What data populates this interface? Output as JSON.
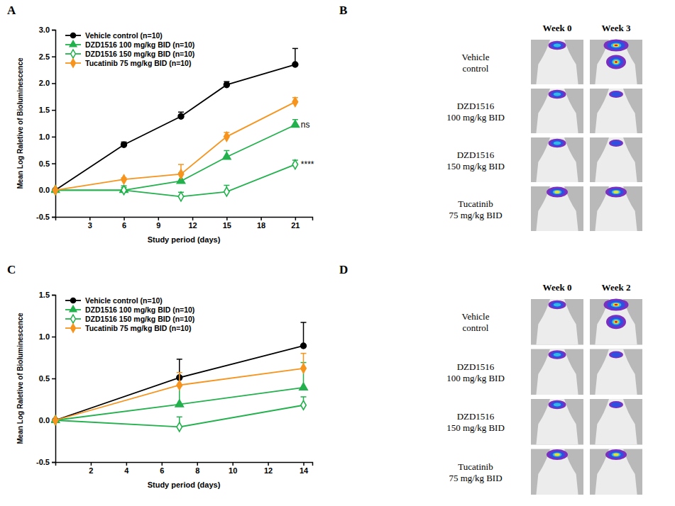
{
  "panel_letters": [
    "A",
    "B",
    "C",
    "D"
  ],
  "chart_data": [
    {
      "type": "line",
      "x": [
        0,
        6,
        11,
        15,
        21
      ],
      "xlim": [
        0,
        22.5
      ],
      "xticks": [
        3,
        6,
        9,
        12,
        15,
        18,
        21
      ],
      "ylim": [
        -0.5,
        3.0
      ],
      "yticks": [
        -0.5,
        {
          "value": 0,
          "label": "0.0"
        },
        0.5,
        {
          "value": 1,
          "label": "1.0"
        },
        1.5,
        {
          "value": 2,
          "label": "2.0"
        },
        2.5,
        {
          "value": 3,
          "label": "3.0"
        }
      ],
      "x_label": "Study period (days)",
      "y_label": "Mean Log Raletive of Bioluminescence",
      "legend": "top-left",
      "series": [
        {
          "name": "Vehicle control (n=10)",
          "color": "#000000",
          "marker": "circle",
          "values": [
            0,
            0.85,
            1.38,
            1.97,
            2.35
          ],
          "errors": [
            0,
            0.05,
            0.08,
            0.06,
            0.3
          ]
        },
        {
          "name": "DZD1516 100 mg/kg BID (n=10)",
          "color": "#22b14c",
          "marker": "triangle",
          "values": [
            0,
            0.0,
            0.17,
            0.62,
            1.22
          ],
          "errors": [
            0,
            0.05,
            0.15,
            0.12,
            0.1
          ],
          "annotation": "ns"
        },
        {
          "name": "DZD1516 150 mg/kg BID (n=10)",
          "color": "#22b14c",
          "marker": "diamond-open",
          "values": [
            0,
            0.0,
            -0.12,
            -0.03,
            0.48
          ],
          "errors": [
            0,
            0.08,
            0.08,
            0.12,
            0.08
          ],
          "annotation": "****"
        },
        {
          "name": "Tucatinib 75 mg/kg BID (n=10)",
          "color": "#f7941d",
          "marker": "diamond",
          "values": [
            0,
            0.2,
            0.3,
            1.0,
            1.65
          ],
          "errors": [
            0,
            0.03,
            0.18,
            0.08,
            0.08
          ]
        }
      ]
    },
    {
      "type": "line",
      "x": [
        0,
        7,
        14
      ],
      "xlim": [
        0,
        14.5
      ],
      "xticks": [
        2,
        4,
        6,
        8,
        10,
        12,
        14
      ],
      "ylim": [
        -0.5,
        1.5
      ],
      "yticks": [
        -0.5,
        {
          "value": 0,
          "label": "0.0"
        },
        0.5,
        {
          "value": 1,
          "label": "1.0"
        },
        1.5
      ],
      "x_label": "Study period (days)",
      "y_label": "Mean Log Raletive of Bioluminescence",
      "legend": "top-left",
      "series": [
        {
          "name": "Vehicle control (n=10)",
          "color": "#000000",
          "marker": "circle",
          "values": [
            0,
            0.51,
            0.89
          ],
          "errors": [
            0,
            0.22,
            0.28
          ]
        },
        {
          "name": "DZD1516 100 mg/kg BID (n=10)",
          "color": "#22b14c",
          "marker": "triangle",
          "values": [
            0,
            0.19,
            0.39
          ],
          "errors": [
            0,
            0.22,
            0.3
          ]
        },
        {
          "name": "DZD1516 150 mg/kg BID (n=10)",
          "color": "#22b14c",
          "marker": "diamond-open",
          "values": [
            0,
            -0.08,
            0.18
          ],
          "errors": [
            0,
            0.12,
            0.1
          ]
        },
        {
          "name": "Tucatinib 75 mg/kg BID (n=10)",
          "color": "#f7941d",
          "marker": "diamond",
          "values": [
            0,
            0.42,
            0.62
          ],
          "errors": [
            0,
            0.15,
            0.18
          ]
        }
      ]
    }
  ],
  "image_panels": [
    {
      "columns": [
        "Week 0",
        "Week 3"
      ],
      "rows": [
        "Vehicle control",
        "DZD1516 100 mg/kg BID",
        "DZD1516 150 mg/kg BID",
        "Tucatinib 75 mg/kg BID"
      ]
    },
    {
      "columns": [
        "Week 0",
        "Week 2"
      ],
      "rows": [
        "Vehicle control",
        "DZD1516 100 mg/kg BID",
        "DZD1516 150 mg/kg BID",
        "Tucatinib 75 mg/kg BID"
      ]
    }
  ]
}
